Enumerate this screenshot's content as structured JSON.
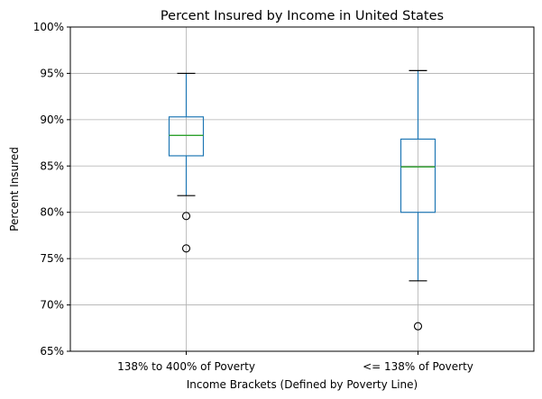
{
  "chart_data": {
    "type": "box",
    "title": "Percent Insured by Income in United States",
    "xlabel": "Income Brackets (Defined by Poverty Line)",
    "ylabel": "Percent Insured",
    "ylim": [
      65,
      100
    ],
    "yticks": [
      65,
      70,
      75,
      80,
      85,
      90,
      95,
      100
    ],
    "ytick_labels": [
      "65%",
      "70%",
      "75%",
      "80%",
      "85%",
      "90%",
      "95%",
      "100%"
    ],
    "grid": true,
    "categories": [
      "138% to 400% of Poverty",
      "<= 138% of Poverty"
    ],
    "boxes": [
      {
        "category": "138% to 400% of Poverty",
        "whisker_low": 81.8,
        "q1": 86.1,
        "median": 88.3,
        "q3": 90.3,
        "whisker_high": 95.0,
        "outliers": [
          79.6,
          76.1
        ]
      },
      {
        "category": "<= 138% of Poverty",
        "whisker_low": 72.6,
        "q1": 80.0,
        "median": 84.9,
        "q3": 87.9,
        "whisker_high": 95.3,
        "outliers": [
          67.7
        ]
      }
    ],
    "colors": {
      "box": "#1f77b4",
      "median": "#2ca02c",
      "whisker": "#1f77b4",
      "cap": "#000000",
      "grid": "#b0b0b0",
      "outlier": "#000000"
    }
  }
}
